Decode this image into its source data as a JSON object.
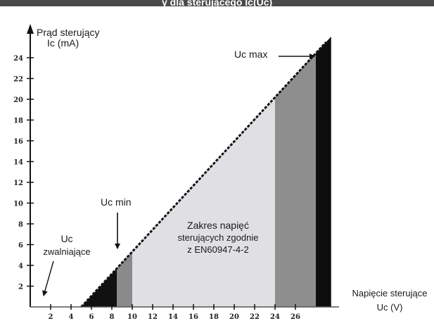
{
  "header": {
    "title_fragment": "y dla sterującego Ic(Uc)"
  },
  "chart_data": {
    "type": "area",
    "y_axis": {
      "label_line1": "Prąd sterujący",
      "label_line2": "Ic (mA)",
      "ticks": [
        2,
        4,
        6,
        8,
        10,
        12,
        14,
        16,
        18,
        20,
        22,
        24
      ],
      "tick_labels": [
        "2",
        "4",
        "6",
        "8",
        "10",
        "12",
        "14",
        "16",
        "18",
        "20",
        "22",
        "24"
      ]
    },
    "x_axis": {
      "label_line1": "Napięcie sterujące",
      "label_line2": "Uc (V)",
      "ticks": [
        2,
        4,
        6,
        8,
        10,
        12,
        14,
        16,
        18,
        20,
        22,
        24,
        26
      ],
      "tick_labels": [
        "2",
        "4",
        "6",
        "8",
        "10",
        "12",
        "14",
        "16",
        "18",
        "20",
        "22",
        "24",
        "26"
      ]
    },
    "line": {
      "x": [
        5,
        29
      ],
      "y": [
        0,
        25.5
      ]
    },
    "bands": [
      {
        "x_from": 5,
        "x_to": 8.5,
        "fill": "#111111"
      },
      {
        "x_from": 8.5,
        "x_to": 10,
        "fill": "#8a8a8a"
      },
      {
        "x_from": 10,
        "x_to": 24,
        "fill": "#e0e0e4"
      },
      {
        "x_from": 24,
        "x_to": 28,
        "fill": "#8e8e8e"
      },
      {
        "x_from": 28,
        "x_to": 29.5,
        "fill": "#0e0e0e"
      }
    ],
    "annotations": {
      "uc_max": "Uc max",
      "uc_min": "Uc min",
      "uc_release_line1": "Uc",
      "uc_release_line2": "zwalniające",
      "range_line1": "Zakres napięć",
      "range_line2": "sterujących zgodnie",
      "range_line3": "z EN60947-4-2"
    }
  }
}
